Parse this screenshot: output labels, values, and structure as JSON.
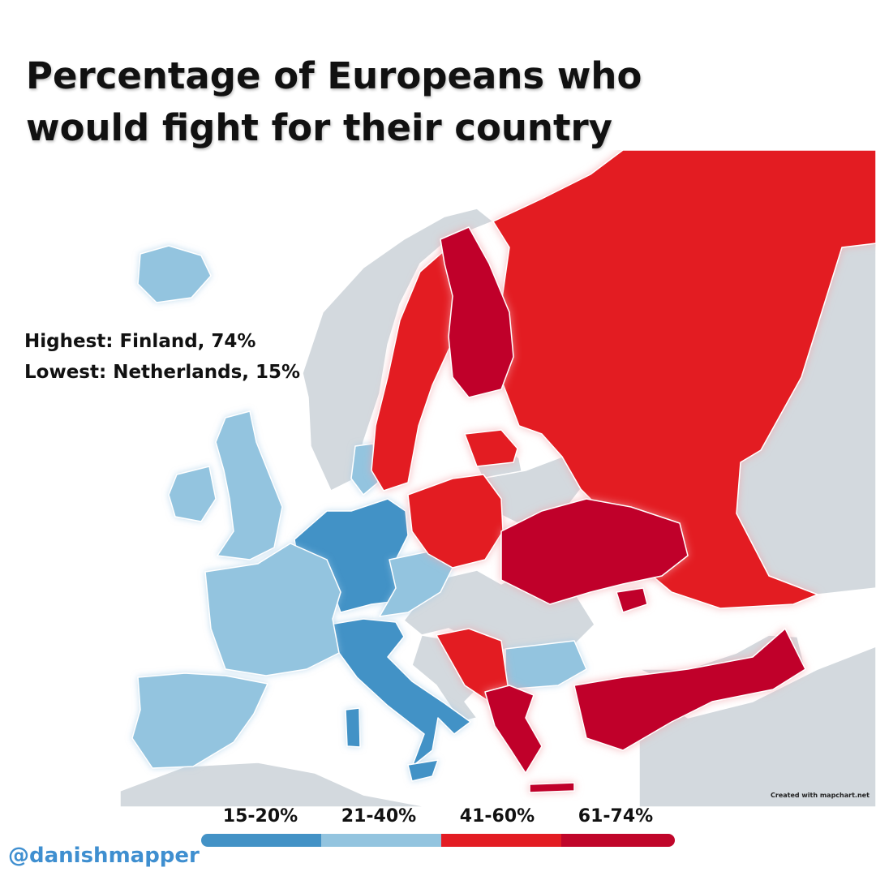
{
  "title": "Percentage of Europeans who would fight for their country",
  "stats": {
    "highest": "Highest: Finland, 74%",
    "lowest": "Lowest: Netherlands, 15%"
  },
  "legend": [
    {
      "label": "15-20%",
      "color": "#4392c6"
    },
    {
      "label": "21-40%",
      "color": "#93c4df"
    },
    {
      "label": "41-60%",
      "color": "#e31c23"
    },
    {
      "label": "61-74%",
      "color": "#c0062a"
    }
  ],
  "colors": {
    "no_data": "#d3d9de",
    "sea": "#ffffff",
    "border": "#ffffff"
  },
  "credit": "Created with mapchart.net",
  "handle": "@danishmapper"
}
